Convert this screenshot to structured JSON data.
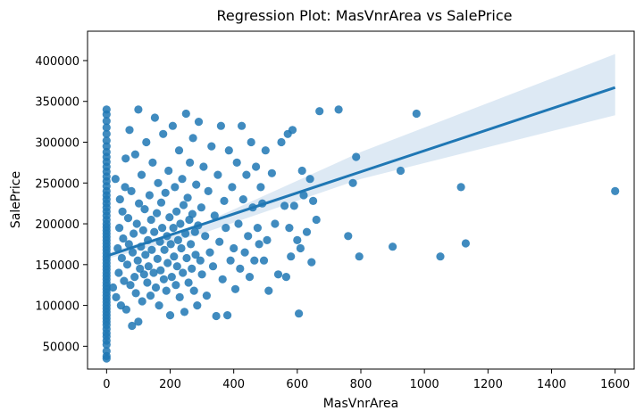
{
  "chart_data": {
    "type": "scatter",
    "title": "Regression Plot: MasVnrArea vs SalePrice",
    "xlabel": "MasVnrArea",
    "ylabel": "SalePrice",
    "xlim": [
      -60,
      1660
    ],
    "ylim": [
      22000,
      436000
    ],
    "xticks": [
      0,
      200,
      400,
      600,
      800,
      1000,
      1200,
      1400,
      1600
    ],
    "yticks": [
      50000,
      100000,
      150000,
      200000,
      250000,
      300000,
      350000,
      400000
    ],
    "grid": false,
    "colors": {
      "points": "#1f77b4",
      "line": "#1f77b4",
      "band": "#bcd4ea"
    },
    "regression": {
      "x": [
        0,
        1600
      ],
      "y": [
        160500,
        367000
      ]
    },
    "confidence_band": {
      "x": [
        0,
        300,
        800,
        1600
      ],
      "lower": [
        157000,
        188000,
        255000,
        333000
      ],
      "upper": [
        164000,
        200000,
        288000,
        408000
      ]
    },
    "points": [
      [
        0,
        35000
      ],
      [
        0,
        38000
      ],
      [
        0,
        44000
      ],
      [
        0,
        52000
      ],
      [
        0,
        57000
      ],
      [
        0,
        62000
      ],
      [
        0,
        66000
      ],
      [
        0,
        71000
      ],
      [
        0,
        76000
      ],
      [
        0,
        80000
      ],
      [
        0,
        84000
      ],
      [
        0,
        88000
      ],
      [
        0,
        92000
      ],
      [
        0,
        96000
      ],
      [
        0,
        100000
      ],
      [
        0,
        104000
      ],
      [
        0,
        108000
      ],
      [
        0,
        112000
      ],
      [
        0,
        116000
      ],
      [
        0,
        120000
      ],
      [
        0,
        124000
      ],
      [
        0,
        128000
      ],
      [
        0,
        132000
      ],
      [
        0,
        136000
      ],
      [
        0,
        140000
      ],
      [
        0,
        144000
      ],
      [
        0,
        148000
      ],
      [
        0,
        152000
      ],
      [
        0,
        156000
      ],
      [
        0,
        160000
      ],
      [
        0,
        164000
      ],
      [
        0,
        168000
      ],
      [
        0,
        172000
      ],
      [
        0,
        176000
      ],
      [
        0,
        180000
      ],
      [
        0,
        184000
      ],
      [
        0,
        188000
      ],
      [
        0,
        192000
      ],
      [
        0,
        196000
      ],
      [
        0,
        200000
      ],
      [
        0,
        205000
      ],
      [
        0,
        210000
      ],
      [
        0,
        215000
      ],
      [
        0,
        220000
      ],
      [
        0,
        225000
      ],
      [
        0,
        230000
      ],
      [
        0,
        235000
      ],
      [
        0,
        240000
      ],
      [
        0,
        246000
      ],
      [
        0,
        252000
      ],
      [
        0,
        258000
      ],
      [
        0,
        264000
      ],
      [
        0,
        270000
      ],
      [
        0,
        276000
      ],
      [
        0,
        282000
      ],
      [
        0,
        288000
      ],
      [
        0,
        295000
      ],
      [
        0,
        302000
      ],
      [
        0,
        310000
      ],
      [
        0,
        318000
      ],
      [
        0,
        326000
      ],
      [
        0,
        334000
      ],
      [
        0,
        340000
      ],
      [
        20,
        122000
      ],
      [
        28,
        255000
      ],
      [
        30,
        110000
      ],
      [
        35,
        170000
      ],
      [
        38,
        140000
      ],
      [
        40,
        195000
      ],
      [
        42,
        230000
      ],
      [
        45,
        100000
      ],
      [
        48,
        158000
      ],
      [
        50,
        215000
      ],
      [
        52,
        182000
      ],
      [
        55,
        130000
      ],
      [
        58,
        245000
      ],
      [
        60,
        280000
      ],
      [
        62,
        95000
      ],
      [
        65,
        150000
      ],
      [
        68,
        207000
      ],
      [
        70,
        175000
      ],
      [
        72,
        315000
      ],
      [
        75,
        125000
      ],
      [
        78,
        240000
      ],
      [
        80,
        75000
      ],
      [
        82,
        165000
      ],
      [
        85,
        188000
      ],
      [
        88,
        135000
      ],
      [
        90,
        285000
      ],
      [
        92,
        115000
      ],
      [
        95,
        200000
      ],
      [
        98,
        155000
      ],
      [
        100,
        340000
      ],
      [
        100,
        80000
      ],
      [
        102,
        225000
      ],
      [
        105,
        145000
      ],
      [
        108,
        172000
      ],
      [
        110,
        260000
      ],
      [
        112,
        105000
      ],
      [
        115,
        192000
      ],
      [
        118,
        138000
      ],
      [
        120,
        218000
      ],
      [
        122,
        162000
      ],
      [
        125,
        300000
      ],
      [
        128,
        128000
      ],
      [
        130,
        180000
      ],
      [
        132,
        148000
      ],
      [
        135,
        235000
      ],
      [
        138,
        112000
      ],
      [
        140,
        205000
      ],
      [
        142,
        168000
      ],
      [
        145,
        275000
      ],
      [
        148,
        140000
      ],
      [
        150,
        190000
      ],
      [
        152,
        330000
      ],
      [
        155,
        122000
      ],
      [
        158,
        213000
      ],
      [
        160,
        157000
      ],
      [
        162,
        250000
      ],
      [
        165,
        100000
      ],
      [
        168,
        178000
      ],
      [
        170,
        143000
      ],
      [
        172,
        226000
      ],
      [
        175,
        195000
      ],
      [
        178,
        310000
      ],
      [
        180,
        132000
      ],
      [
        182,
        168000
      ],
      [
        185,
        238000
      ],
      [
        188,
        118000
      ],
      [
        190,
        185000
      ],
      [
        192,
        152000
      ],
      [
        195,
        265000
      ],
      [
        198,
        208000
      ],
      [
        200,
        88000
      ],
      [
        202,
        175000
      ],
      [
        205,
        135000
      ],
      [
        208,
        320000
      ],
      [
        210,
        195000
      ],
      [
        212,
        160000
      ],
      [
        215,
        245000
      ],
      [
        218,
        125000
      ],
      [
        220,
        215000
      ],
      [
        222,
        148000
      ],
      [
        225,
        180000
      ],
      [
        228,
        290000
      ],
      [
        230,
        110000
      ],
      [
        232,
        200000
      ],
      [
        235,
        170000
      ],
      [
        238,
        255000
      ],
      [
        240,
        140000
      ],
      [
        242,
        223000
      ],
      [
        245,
        92000
      ],
      [
        248,
        188000
      ],
      [
        250,
        335000
      ],
      [
        252,
        158000
      ],
      [
        255,
        232000
      ],
      [
        258,
        128000
      ],
      [
        260,
        205000
      ],
      [
        262,
        275000
      ],
      [
        265,
        175000
      ],
      [
        268,
        145000
      ],
      [
        270,
        212000
      ],
      [
        272,
        305000
      ],
      [
        275,
        118000
      ],
      [
        278,
        190000
      ],
      [
        280,
        162000
      ],
      [
        282,
        248000
      ],
      [
        285,
        100000
      ],
      [
        288,
        198000
      ],
      [
        290,
        325000
      ],
      [
        295,
        155000
      ],
      [
        298,
        220000
      ],
      [
        300,
        138000
      ],
      [
        305,
        270000
      ],
      [
        310,
        185000
      ],
      [
        315,
        112000
      ],
      [
        320,
        240000
      ],
      [
        325,
        165000
      ],
      [
        330,
        295000
      ],
      [
        335,
        148000
      ],
      [
        340,
        210000
      ],
      [
        345,
        87000
      ],
      [
        350,
        260000
      ],
      [
        355,
        178000
      ],
      [
        360,
        320000
      ],
      [
        365,
        132000
      ],
      [
        370,
        228000
      ],
      [
        375,
        195000
      ],
      [
        380,
        88000
      ],
      [
        385,
        290000
      ],
      [
        390,
        155000
      ],
      [
        395,
        245000
      ],
      [
        400,
        170000
      ],
      [
        405,
        120000
      ],
      [
        410,
        275000
      ],
      [
        415,
        200000
      ],
      [
        420,
        145000
      ],
      [
        425,
        320000
      ],
      [
        430,
        230000
      ],
      [
        435,
        165000
      ],
      [
        440,
        260000
      ],
      [
        445,
        185000
      ],
      [
        450,
        135000
      ],
      [
        455,
        300000
      ],
      [
        460,
        220000
      ],
      [
        465,
        155000
      ],
      [
        470,
        270000
      ],
      [
        475,
        195000
      ],
      [
        480,
        175000
      ],
      [
        485,
        245000
      ],
      [
        490,
        225000
      ],
      [
        495,
        155000
      ],
      [
        500,
        290000
      ],
      [
        505,
        180000
      ],
      [
        510,
        118000
      ],
      [
        520,
        262000
      ],
      [
        530,
        200000
      ],
      [
        540,
        138000
      ],
      [
        550,
        300000
      ],
      [
        560,
        222000
      ],
      [
        565,
        135000
      ],
      [
        570,
        310000
      ],
      [
        575,
        195000
      ],
      [
        580,
        160000
      ],
      [
        585,
        315000
      ],
      [
        590,
        222000
      ],
      [
        600,
        180000
      ],
      [
        605,
        90000
      ],
      [
        610,
        170000
      ],
      [
        615,
        265000
      ],
      [
        620,
        235000
      ],
      [
        630,
        190000
      ],
      [
        640,
        255000
      ],
      [
        645,
        153000
      ],
      [
        650,
        228000
      ],
      [
        660,
        205000
      ],
      [
        670,
        338000
      ],
      [
        730,
        340000
      ],
      [
        760,
        185000
      ],
      [
        775,
        250000
      ],
      [
        785,
        282000
      ],
      [
        795,
        160000
      ],
      [
        900,
        172000
      ],
      [
        925,
        265000
      ],
      [
        975,
        335000
      ],
      [
        1050,
        160000
      ],
      [
        1115,
        245000
      ],
      [
        1130,
        176000
      ],
      [
        1600,
        240000
      ]
    ]
  }
}
